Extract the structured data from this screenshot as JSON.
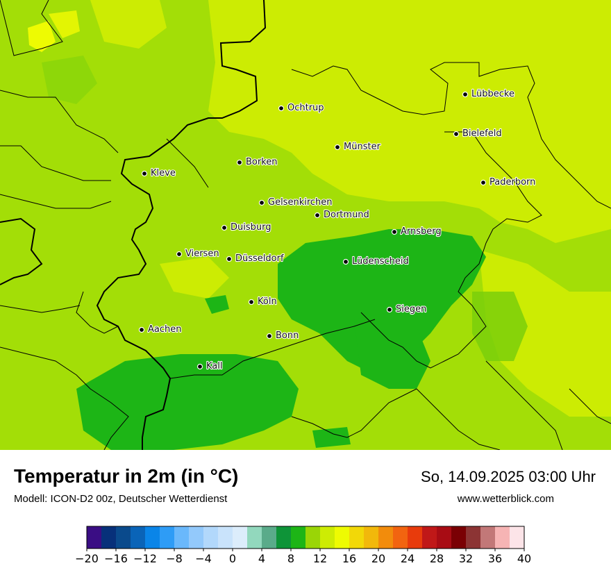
{
  "map": {
    "title": "Temperatur in 2m (in °C)",
    "model": "Modell: ICON-D2 00z, Deutscher Wetterdienst",
    "datetime": "So, 14.09.2025 03:00 Uhr",
    "website": "www.wetterblick.com",
    "cities": [
      {
        "name": "Lübbecke"
      },
      {
        "name": "Ochtrup"
      },
      {
        "name": "Bielefeld"
      },
      {
        "name": "Münster"
      },
      {
        "name": "Borken"
      },
      {
        "name": "Kleve"
      },
      {
        "name": "Paderborn"
      },
      {
        "name": "Gelsenkirchen"
      },
      {
        "name": "Dortmund"
      },
      {
        "name": "Duisburg"
      },
      {
        "name": "Arnsberg"
      },
      {
        "name": "Viersen"
      },
      {
        "name": "Düsseldorf"
      },
      {
        "name": "Lüdenscheid"
      },
      {
        "name": "Köln"
      },
      {
        "name": "Siegen"
      },
      {
        "name": "Aachen"
      },
      {
        "name": "Bonn"
      },
      {
        "name": "Kall"
      }
    ]
  },
  "legend": {
    "colors": [
      "#3a0d84",
      "#07307a",
      "#0a4a8c",
      "#0a64b8",
      "#0a85e8",
      "#2e9cf6",
      "#6ab8fb",
      "#93c9fb",
      "#b2d8fb",
      "#c9e3fb",
      "#dcedfb",
      "#92d8bd",
      "#5aab8a",
      "#0e9438",
      "#1db516",
      "#9ad506",
      "#cdec04",
      "#eefb02",
      "#f2d808",
      "#f2b80b",
      "#f28c0c",
      "#f26410",
      "#e83b0c",
      "#c01818",
      "#a80c14",
      "#7a0004",
      "#8c3434",
      "#c27878",
      "#f6b4b4",
      "#fce4e8"
    ],
    "ticks": [
      "−20",
      "−16",
      "−12",
      "−8",
      "−4",
      "0",
      "4",
      "8",
      "12",
      "16",
      "20",
      "24",
      "28",
      "32",
      "36",
      "40"
    ],
    "min": -20,
    "max": 40,
    "step": 2
  }
}
